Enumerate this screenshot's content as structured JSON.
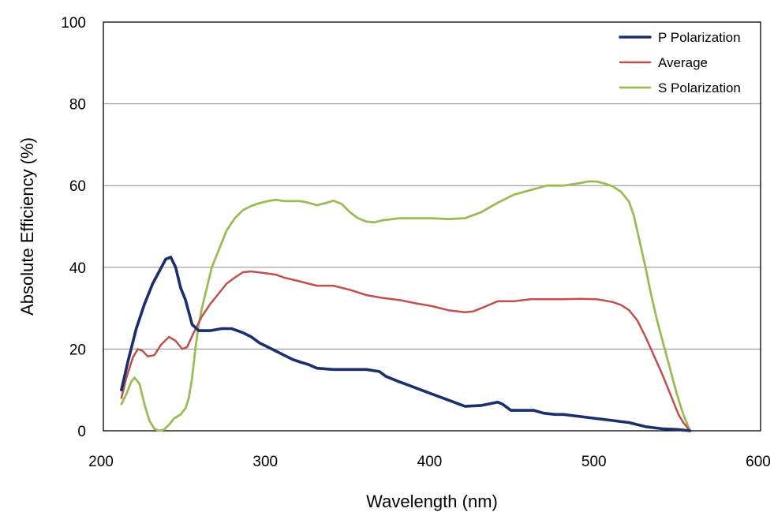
{
  "chart_data": {
    "type": "line",
    "title": "",
    "xlabel": "Wavelength (nm)",
    "ylabel": "Absolute Efficiency (%)",
    "xlim": [
      200,
      600
    ],
    "ylim": [
      0,
      100
    ],
    "xticks": [
      "200",
      "300",
      "400",
      "500",
      "600"
    ],
    "yticks": [
      "0",
      "20",
      "40",
      "60",
      "80",
      "100"
    ],
    "grid": "horizontal",
    "legend": "top-right",
    "series": [
      {
        "name": "P Polarization",
        "color": "#1a2f6b",
        "points": [
          [
            211,
            10
          ],
          [
            215,
            17
          ],
          [
            220,
            25
          ],
          [
            225,
            31
          ],
          [
            230,
            36
          ],
          [
            234,
            39
          ],
          [
            238,
            42
          ],
          [
            241,
            42.5
          ],
          [
            244,
            40
          ],
          [
            247,
            35
          ],
          [
            250,
            32
          ],
          [
            254,
            26
          ],
          [
            258,
            24.5
          ],
          [
            265,
            24.5
          ],
          [
            272,
            25
          ],
          [
            278,
            25
          ],
          [
            285,
            24
          ],
          [
            290,
            23
          ],
          [
            295,
            21.5
          ],
          [
            300,
            20.5
          ],
          [
            305,
            19.5
          ],
          [
            310,
            18.5
          ],
          [
            315,
            17.5
          ],
          [
            320,
            16.8
          ],
          [
            325,
            16.2
          ],
          [
            330,
            15.3
          ],
          [
            340,
            15
          ],
          [
            350,
            15
          ],
          [
            360,
            15
          ],
          [
            368,
            14.5
          ],
          [
            372,
            13.3
          ],
          [
            380,
            12
          ],
          [
            390,
            10.5
          ],
          [
            400,
            9
          ],
          [
            410,
            7.5
          ],
          [
            420,
            6
          ],
          [
            430,
            6.2
          ],
          [
            440,
            7
          ],
          [
            443,
            6.5
          ],
          [
            448,
            5
          ],
          [
            455,
            5
          ],
          [
            462,
            5
          ],
          [
            468,
            4.3
          ],
          [
            475,
            4
          ],
          [
            480,
            4
          ],
          [
            490,
            3.5
          ],
          [
            500,
            3
          ],
          [
            510,
            2.5
          ],
          [
            520,
            2
          ],
          [
            530,
            1
          ],
          [
            540,
            0.5
          ],
          [
            550,
            0.3
          ],
          [
            557,
            0
          ]
        ]
      },
      {
        "name": "Average",
        "color": "#c0504d",
        "points": [
          [
            211,
            8
          ],
          [
            214,
            13
          ],
          [
            218,
            18
          ],
          [
            221,
            20
          ],
          [
            224,
            19.5
          ],
          [
            227,
            18.2
          ],
          [
            231,
            18.5
          ],
          [
            235,
            21
          ],
          [
            240,
            23
          ],
          [
            244,
            22
          ],
          [
            248,
            20
          ],
          [
            251,
            20.5
          ],
          [
            255,
            24
          ],
          [
            260,
            28
          ],
          [
            265,
            31
          ],
          [
            270,
            33.5
          ],
          [
            275,
            36
          ],
          [
            280,
            37.5
          ],
          [
            285,
            38.8
          ],
          [
            290,
            39
          ],
          [
            300,
            38.5
          ],
          [
            305,
            38.2
          ],
          [
            310,
            37.5
          ],
          [
            320,
            36.5
          ],
          [
            330,
            35.5
          ],
          [
            340,
            35.5
          ],
          [
            350,
            34.5
          ],
          [
            360,
            33.2
          ],
          [
            370,
            32.5
          ],
          [
            380,
            32
          ],
          [
            390,
            31.2
          ],
          [
            400,
            30.5
          ],
          [
            410,
            29.5
          ],
          [
            420,
            29
          ],
          [
            425,
            29.2
          ],
          [
            430,
            30
          ],
          [
            440,
            31.7
          ],
          [
            450,
            31.7
          ],
          [
            460,
            32.2
          ],
          [
            470,
            32.2
          ],
          [
            480,
            32.2
          ],
          [
            490,
            32.3
          ],
          [
            500,
            32.2
          ],
          [
            510,
            31.5
          ],
          [
            515,
            30.8
          ],
          [
            520,
            29.5
          ],
          [
            525,
            27
          ],
          [
            530,
            23
          ],
          [
            535,
            18.5
          ],
          [
            540,
            14
          ],
          [
            545,
            9
          ],
          [
            550,
            4
          ],
          [
            553,
            2
          ],
          [
            557,
            0
          ]
        ]
      },
      {
        "name": "S Polarization",
        "color": "#9bbb59",
        "points": [
          [
            211,
            6.5
          ],
          [
            214,
            9
          ],
          [
            217,
            12
          ],
          [
            219,
            13
          ],
          [
            222,
            11.5
          ],
          [
            225,
            6.5
          ],
          [
            228,
            2.5
          ],
          [
            231,
            0.5
          ],
          [
            234,
            0
          ],
          [
            237,
            0.3
          ],
          [
            240,
            1.5
          ],
          [
            243,
            3
          ],
          [
            247,
            4
          ],
          [
            250,
            5.5
          ],
          [
            252,
            8
          ],
          [
            254,
            13
          ],
          [
            256,
            20
          ],
          [
            258,
            26
          ],
          [
            260,
            30
          ],
          [
            263,
            35
          ],
          [
            266,
            40
          ],
          [
            270,
            44
          ],
          [
            275,
            49
          ],
          [
            280,
            52
          ],
          [
            285,
            54
          ],
          [
            290,
            55
          ],
          [
            295,
            55.7
          ],
          [
            300,
            56.2
          ],
          [
            305,
            56.5
          ],
          [
            310,
            56.2
          ],
          [
            320,
            56.2
          ],
          [
            325,
            55.8
          ],
          [
            330,
            55.2
          ],
          [
            335,
            55.7
          ],
          [
            340,
            56.3
          ],
          [
            345,
            55.5
          ],
          [
            350,
            53.5
          ],
          [
            355,
            52
          ],
          [
            360,
            51.2
          ],
          [
            365,
            51
          ],
          [
            370,
            51.5
          ],
          [
            380,
            52
          ],
          [
            390,
            52
          ],
          [
            400,
            52
          ],
          [
            410,
            51.8
          ],
          [
            420,
            52
          ],
          [
            430,
            53.5
          ],
          [
            440,
            55.8
          ],
          [
            450,
            57.8
          ],
          [
            460,
            58.9
          ],
          [
            470,
            60
          ],
          [
            480,
            60
          ],
          [
            490,
            60.6
          ],
          [
            495,
            61
          ],
          [
            500,
            61
          ],
          [
            505,
            60.5
          ],
          [
            510,
            59.8
          ],
          [
            515,
            58.5
          ],
          [
            520,
            56
          ],
          [
            523,
            52.5
          ],
          [
            526,
            47
          ],
          [
            530,
            40
          ],
          [
            533,
            34
          ],
          [
            537,
            27
          ],
          [
            541,
            21
          ],
          [
            545,
            15
          ],
          [
            549,
            9
          ],
          [
            553,
            4
          ],
          [
            557,
            0
          ]
        ]
      }
    ]
  }
}
